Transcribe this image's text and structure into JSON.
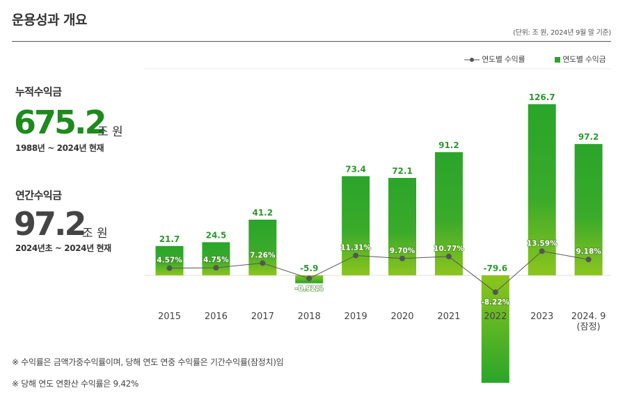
{
  "header": {
    "title": "운용성과 개요",
    "unit_note": "(단위: 조 원, 2024년 9월 말 기준)"
  },
  "kpis": [
    {
      "label": "누적수익금",
      "value": "675.2",
      "unit": "조 원",
      "period": "1988년 ~ 2024년 현재",
      "color": "#1e8a1e"
    },
    {
      "label": "연간수익금",
      "value": "97.2",
      "unit": "조 원",
      "period": "2024년초 ~ 2024년 현재",
      "color": "#444444"
    }
  ],
  "legend": {
    "line_label": "연도별 수익률",
    "bar_label": "연도별 수익금"
  },
  "footnotes": [
    "※ 수익률은 금액가중수익률이며, 당해 연도 연중 수익률은 기간수익률(잠정치)임",
    "※ 당해 연도 연환산 수익률은 9.42%"
  ],
  "colors": {
    "bar_top": "#2aa52a",
    "bar_bottom": "#8cc51e",
    "line": "#555555",
    "value_label": "#2a9a2a"
  },
  "chart_data": {
    "type": "bar",
    "categories": [
      "2015",
      "2016",
      "2017",
      "2018",
      "2019",
      "2020",
      "2021",
      "2022",
      "2023",
      "2024. 9\n(잠정)"
    ],
    "series": [
      {
        "name": "연도별 수익금",
        "type": "bar",
        "values": [
          21.7,
          24.5,
          41.2,
          -5.9,
          73.4,
          72.1,
          91.2,
          -79.6,
          126.7,
          97.2
        ]
      },
      {
        "name": "연도별 수익률",
        "type": "line",
        "values": [
          4.57,
          4.75,
          7.26,
          -0.92,
          11.31,
          9.7,
          10.77,
          -8.22,
          13.59,
          9.18
        ],
        "labels": [
          "4.57%",
          "4.75%",
          "7.26%",
          "-0.92%",
          "11.31%",
          "9.70%",
          "10.77%",
          "-8.22%",
          "13.59%",
          "9.18%"
        ]
      }
    ],
    "bar_labels": [
      "21.7",
      "24.5",
      "41.2",
      "-5.9",
      "73.4",
      "72.1",
      "91.2",
      "-79.6",
      "126.7",
      "97.2"
    ],
    "legend_position": "top-right"
  }
}
